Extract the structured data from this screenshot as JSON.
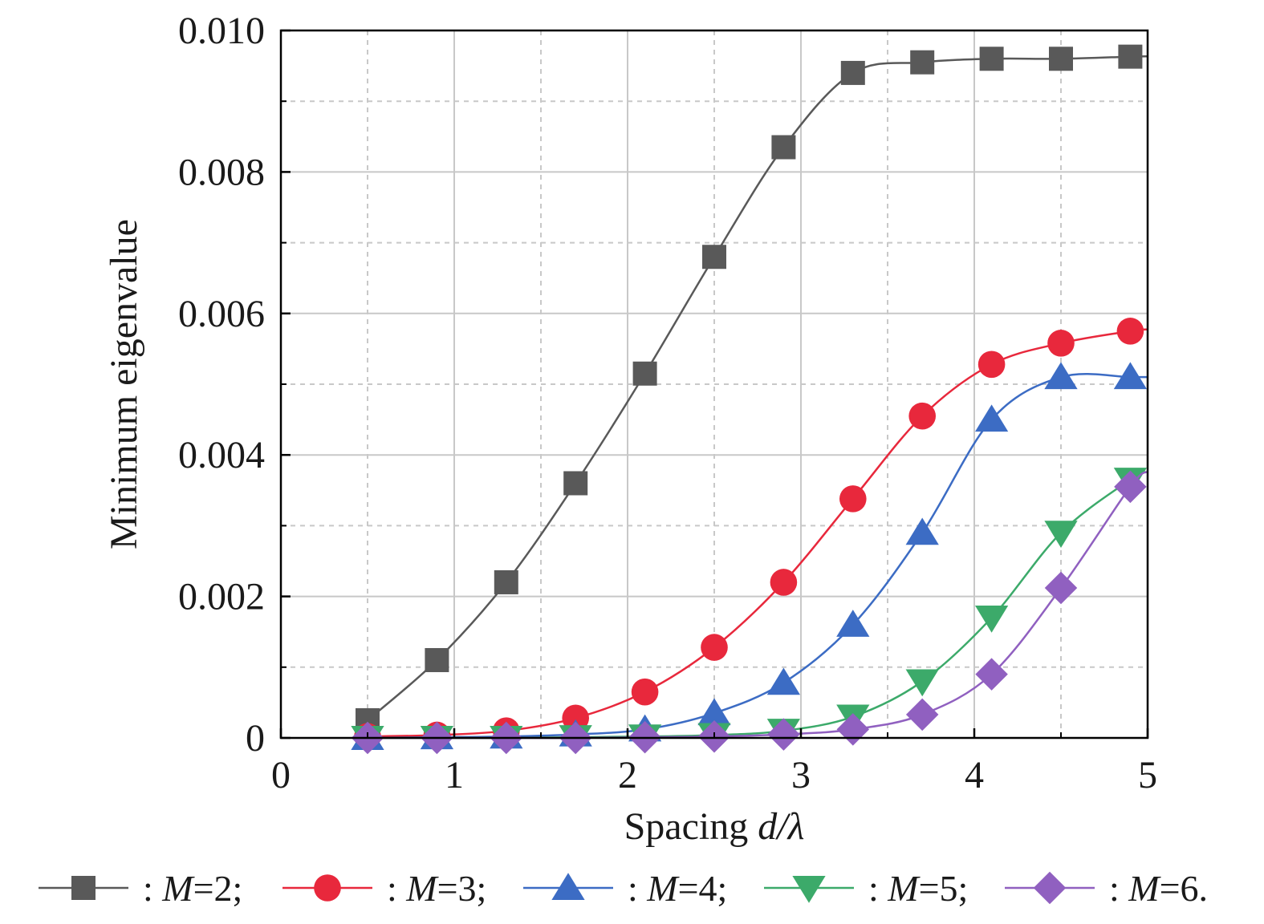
{
  "chart_data": {
    "type": "line",
    "title": "",
    "xlabel": "Spacing",
    "xlabel_var": "d/λ",
    "ylabel": "Minimum eigenvalue",
    "xlim": [
      0,
      5
    ],
    "ylim": [
      0,
      0.01
    ],
    "x_ticks": [
      "0",
      "1",
      "2",
      "3",
      "4",
      "5"
    ],
    "y_ticks": [
      "0",
      "0.002",
      "0.004",
      "0.006",
      "0.008",
      "0.010"
    ],
    "grid": true,
    "legend_position": "bottom",
    "x": [
      0.5,
      0.9,
      1.3,
      1.7,
      2.1,
      2.5,
      2.9,
      3.3,
      3.7,
      4.1,
      4.5,
      4.9
    ],
    "series": [
      {
        "name": "M=2",
        "legend_prefix": ": ",
        "legend_var": "M",
        "legend_suffix": "=2;",
        "color": "#595959",
        "marker": "square",
        "values": [
          0.00025,
          0.0011,
          0.0022,
          0.0036,
          0.00515,
          0.0068,
          0.00835,
          0.0094,
          0.00955,
          0.0096,
          0.0096,
          0.00963
        ]
      },
      {
        "name": "M=3",
        "legend_prefix": ": ",
        "legend_var": "M",
        "legend_suffix": "=3;",
        "color": "#e8283c",
        "marker": "circle",
        "values": [
          2e-05,
          4e-05,
          0.0001,
          0.00028,
          0.00065,
          0.00128,
          0.0022,
          0.00338,
          0.00455,
          0.00528,
          0.00558,
          0.00575
        ]
      },
      {
        "name": "M=4",
        "legend_prefix": ": ",
        "legend_var": "M",
        "legend_suffix": "=4;",
        "color": "#3c6cc4",
        "marker": "triangle-up",
        "values": [
          0.0,
          1e-05,
          2e-05,
          5e-05,
          0.00012,
          0.00035,
          0.00078,
          0.0016,
          0.0029,
          0.0045,
          0.0051,
          0.0051
        ]
      },
      {
        "name": "M=5",
        "legend_prefix": ": ",
        "legend_var": "M",
        "legend_suffix": "=5;",
        "color": "#3caa6a",
        "marker": "triangle-down",
        "values": [
          0.0,
          0.0,
          0.0,
          1e-05,
          2e-05,
          4e-05,
          0.0001,
          0.0003,
          0.0008,
          0.0017,
          0.0029,
          0.00365
        ]
      },
      {
        "name": "M=6",
        "legend_prefix": ": ",
        "legend_var": "M",
        "legend_suffix": "=6.",
        "color": "#9060c0",
        "marker": "diamond",
        "values": [
          0.0,
          0.0,
          0.0,
          0.0,
          1e-05,
          2e-05,
          5e-05,
          0.00012,
          0.00033,
          0.0009,
          0.00212,
          0.00355
        ]
      }
    ]
  }
}
